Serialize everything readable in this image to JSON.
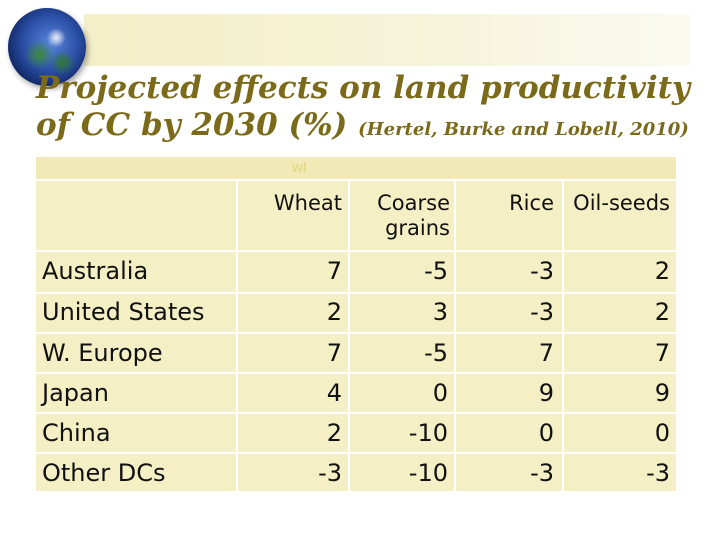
{
  "title": {
    "main": "Projected effects on land productivity of CC by 2030 (%)",
    "citation": "(Hertel, Burke and Lobell, 2010)"
  },
  "table": {
    "header_label": "wl",
    "columns": [
      "Wheat",
      "Coarse grains",
      "Rice",
      "Oil-seeds"
    ],
    "rows": [
      {
        "region": "Australia",
        "values": [
          "7",
          "-5",
          "-3",
          "2"
        ]
      },
      {
        "region": "United States",
        "values": [
          "2",
          "3",
          "-3",
          "2"
        ]
      },
      {
        "region": "W. Europe",
        "values": [
          "7",
          "-5",
          "7",
          "7"
        ]
      },
      {
        "region": "Japan",
        "values": [
          "4",
          "0",
          "9",
          "9"
        ]
      },
      {
        "region": "China",
        "values": [
          "2",
          "-10",
          "0",
          "0"
        ]
      },
      {
        "region": "Other DCs",
        "values": [
          "-3",
          "-10",
          "-3",
          "-3"
        ]
      }
    ]
  },
  "colors": {
    "title": "#7a6a1a",
    "table_bg": "#f4efc4",
    "band": "#f3efc8"
  }
}
